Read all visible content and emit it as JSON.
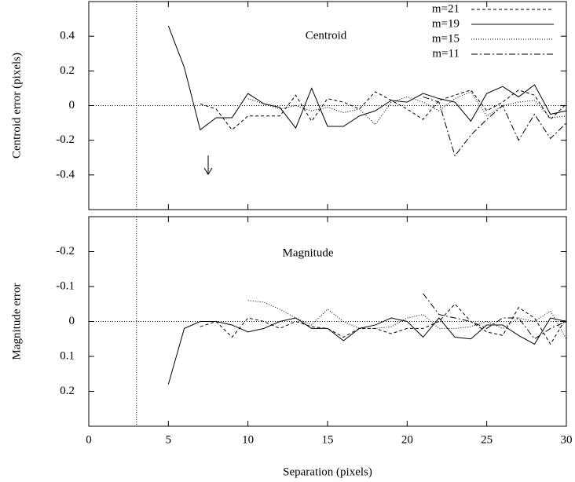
{
  "chart_data": [
    {
      "type": "line",
      "annotation": "Centroid",
      "ylabel": "Centroid error (pixels)",
      "xlim": [
        0,
        30
      ],
      "ylim": [
        -0.6,
        0.6
      ],
      "yticks": [
        -0.4,
        -0.2,
        0,
        0.2,
        0.4
      ],
      "vline": 3,
      "hline": 0,
      "legend": "top-right",
      "x": [
        5,
        6,
        7,
        8,
        9,
        10,
        11,
        12,
        13,
        14,
        15,
        16,
        17,
        18,
        19,
        20,
        21,
        22,
        23,
        24,
        25,
        26,
        27,
        28,
        29,
        30
      ],
      "series": [
        {
          "name": "m=21",
          "color": "#000000",
          "dash": "dashed",
          "values": [
            null,
            null,
            0.01,
            -0.02,
            -0.14,
            -0.06,
            -0.06,
            -0.06,
            0.06,
            -0.09,
            0.04,
            0.02,
            -0.02,
            0.08,
            0.03,
            -0.02,
            -0.08,
            0.03,
            0.06,
            0.09,
            -0.03,
            0.02,
            0.09,
            0.06,
            -0.08,
            0.01
          ]
        },
        {
          "name": "m=19",
          "color": "#000000",
          "dash": "solid",
          "values": [
            0.46,
            0.22,
            -0.14,
            -0.07,
            -0.07,
            0.07,
            0.01,
            -0.01,
            -0.13,
            0.1,
            -0.12,
            -0.12,
            -0.06,
            -0.03,
            0.03,
            0.02,
            0.07,
            0.04,
            0.02,
            -0.09,
            0.07,
            0.11,
            0.05,
            0.12,
            -0.05,
            -0.03
          ]
        },
        {
          "name": "m=15",
          "color": "#000000",
          "dash": "dotted",
          "values": [
            null,
            null,
            null,
            null,
            null,
            0.04,
            0.01,
            -0.02,
            0.0,
            -0.03,
            -0.01,
            -0.04,
            -0.02,
            -0.11,
            0.02,
            0.05,
            0.02,
            -0.03,
            0.04,
            0.08,
            -0.06,
            0.0,
            0.02,
            0.03,
            -0.07,
            -0.06
          ]
        },
        {
          "name": "m=11",
          "color": "#000000",
          "dash": "dashdot",
          "values": [
            null,
            null,
            null,
            null,
            null,
            null,
            null,
            null,
            null,
            null,
            null,
            null,
            null,
            null,
            null,
            null,
            0.05,
            0.02,
            -0.29,
            -0.17,
            -0.08,
            0.0,
            -0.2,
            -0.05,
            -0.19,
            -0.1
          ]
        }
      ]
    },
    {
      "type": "line",
      "annotation": "Magnitude",
      "ylabel": "Magnitude error",
      "xlabel": "Separation (pixels)",
      "xlim": [
        0,
        30
      ],
      "xticks": [
        0,
        5,
        10,
        15,
        20,
        25,
        30
      ],
      "ylim": [
        0.3,
        -0.3
      ],
      "yticks": [
        -0.2,
        -0.1,
        0,
        0.1,
        0.2
      ],
      "vline": 3,
      "hline": 0,
      "x": [
        5,
        6,
        7,
        8,
        9,
        10,
        11,
        12,
        13,
        14,
        15,
        16,
        17,
        18,
        19,
        20,
        21,
        22,
        23,
        24,
        25,
        26,
        27,
        28,
        29,
        30
      ],
      "series": [
        {
          "color": "#000000",
          "dash": "dashed",
          "values": [
            null,
            null,
            0.015,
            0.0,
            0.045,
            -0.01,
            0.0,
            0.02,
            0.0,
            0.015,
            0.02,
            0.045,
            0.02,
            0.02,
            0.035,
            0.02,
            0.02,
            0.0,
            -0.05,
            0.0,
            0.03,
            0.04,
            -0.04,
            -0.01,
            0.065,
            -0.01
          ]
        },
        {
          "color": "#000000",
          "dash": "solid",
          "values": [
            0.18,
            0.02,
            0.0,
            0.0,
            0.01,
            0.03,
            0.02,
            0.0,
            -0.01,
            0.02,
            0.02,
            0.055,
            0.02,
            0.01,
            -0.01,
            0.0,
            0.045,
            -0.01,
            0.045,
            0.05,
            0.01,
            0.01,
            0.04,
            0.065,
            -0.01,
            0.0
          ]
        },
        {
          "color": "#000000",
          "dash": "dotted",
          "values": [
            null,
            null,
            null,
            null,
            null,
            -0.06,
            -0.055,
            -0.035,
            -0.01,
            0.01,
            -0.035,
            0.0,
            0.02,
            0.02,
            0.015,
            -0.01,
            -0.02,
            0.02,
            0.02,
            0.015,
            0.0,
            0.02,
            -0.01,
            0.0,
            -0.03,
            0.05
          ]
        },
        {
          "color": "#000000",
          "dash": "dashdot",
          "values": [
            null,
            null,
            null,
            null,
            null,
            null,
            null,
            null,
            null,
            null,
            null,
            null,
            null,
            null,
            null,
            null,
            -0.08,
            -0.02,
            -0.01,
            0.0,
            0.02,
            -0.01,
            -0.01,
            0.05,
            0.02,
            0.0
          ]
        }
      ]
    }
  ]
}
